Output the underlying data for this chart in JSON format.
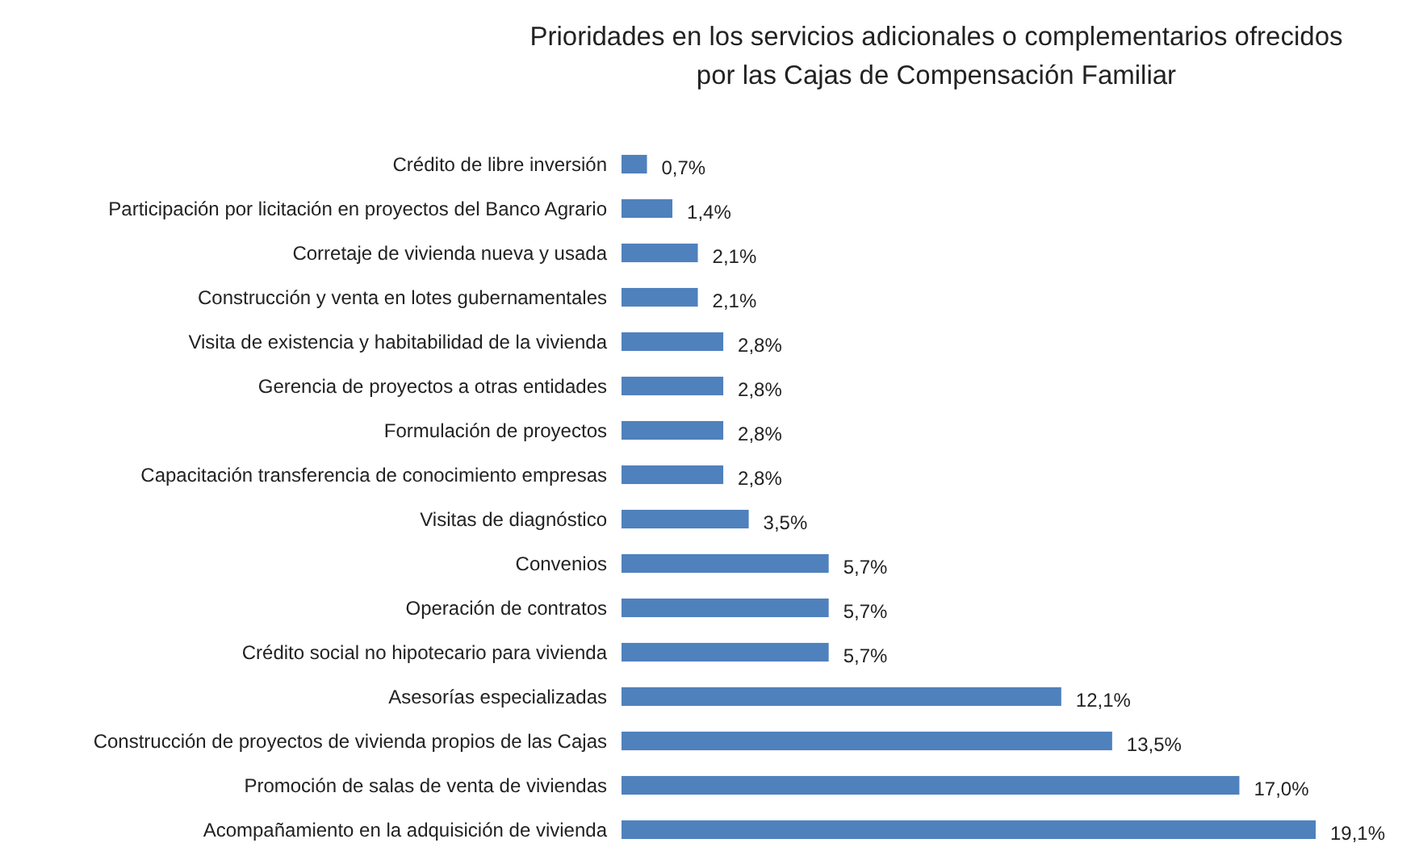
{
  "chart_data": {
    "type": "bar",
    "orientation": "horizontal",
    "title": "Prioridades en los servicios adicionales o complementarios ofrecidos por las Cajas de Compensación Familiar",
    "categories": [
      "Crédito de libre inversión",
      "Participación por licitación en proyectos del Banco Agrario",
      "Corretaje de vivienda nueva y usada",
      "Construcción y venta en lotes gubernamentales",
      "Visita de existencia y habitabilidad de la vivienda",
      "Gerencia de proyectos a otras entidades",
      "Formulación de proyectos",
      "Capacitación transferencia de conocimiento empresas",
      "Visitas de diagnóstico",
      "Convenios",
      "Operación de contratos",
      "Crédito social no hipotecario para vivienda",
      "Asesorías especializadas",
      "Construcción de proyectos de vivienda propios de las Cajas",
      "Promoción de salas de venta de viviendas",
      "Acompañamiento en la adquisición de vivienda"
    ],
    "values": [
      0.7,
      1.4,
      2.1,
      2.1,
      2.8,
      2.8,
      2.8,
      2.8,
      3.5,
      5.7,
      5.7,
      5.7,
      12.1,
      13.5,
      17.0,
      19.1
    ],
    "value_labels": [
      "0,7%",
      "1,4%",
      "2,1%",
      "2,1%",
      "2,8%",
      "2,8%",
      "2,8%",
      "2,8%",
      "3,5%",
      "5,7%",
      "5,7%",
      "5,7%",
      "12,1%",
      "13,5%",
      "17,0%",
      "19,1%"
    ],
    "color": "#4f81bd"
  }
}
